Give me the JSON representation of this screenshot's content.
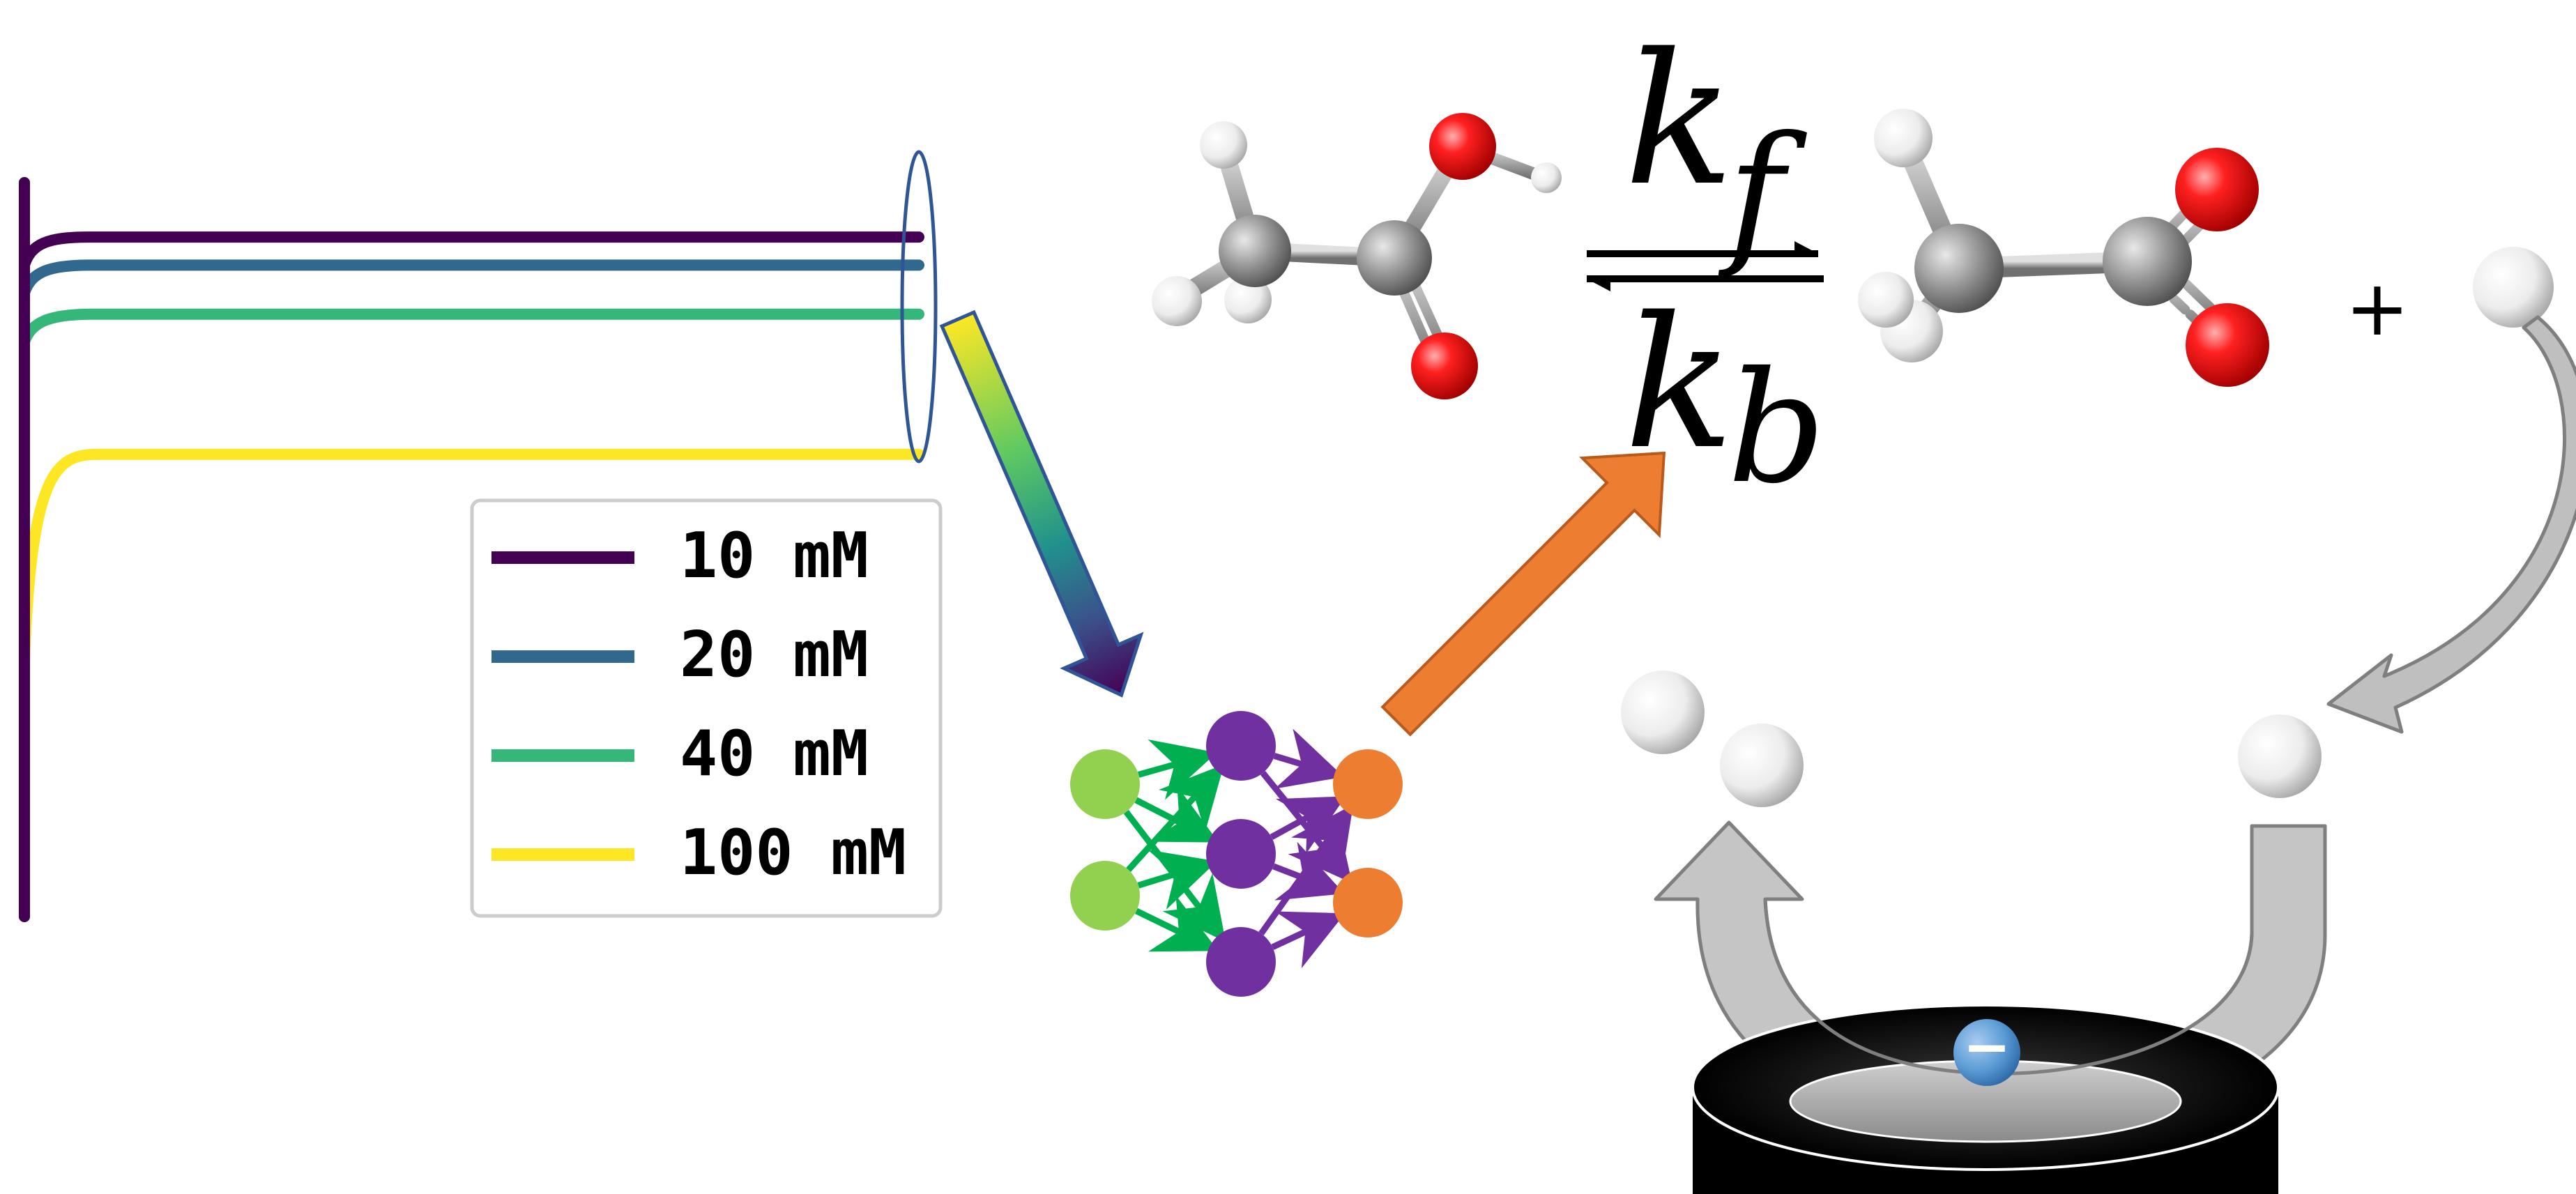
{
  "chart_data": {
    "type": "line",
    "title": "",
    "xlabel": "",
    "ylabel": "",
    "legend": {
      "placement": "bottom-right",
      "frame": true
    },
    "grid": false,
    "series": [
      {
        "name": "10 mM",
        "color": "#440154",
        "shape": "steep drop then flat plateau",
        "plateau_level": 0.97
      },
      {
        "name": "20 mM",
        "color": "#31688e",
        "shape": "steep drop then flat plateau",
        "plateau_level": 0.93
      },
      {
        "name": "40 mM",
        "color": "#35b779",
        "shape": "steep drop then flat plateau",
        "plateau_level": 0.86
      },
      {
        "name": "100 mM",
        "color": "#fde725",
        "shape": "steep drop then flat plateau",
        "plateau_level": 0.66
      }
    ]
  },
  "equation": {
    "forward_rate": {
      "symbol": "k",
      "subscript": "f"
    },
    "backward_rate": {
      "symbol": "k",
      "subscript": "b"
    },
    "plus_sign": "+"
  },
  "molecules": {
    "reactant": "acetic-acid",
    "product_1": "acetate",
    "product_2": "hydrogen-atom",
    "adsorbed_pair": "hydrogen-molecule",
    "single_atom": "hydrogen-atom"
  },
  "electron_symbol": "−",
  "neural_network": {
    "input_nodes": 2,
    "hidden_nodes": 3,
    "output_nodes": 2,
    "colors": {
      "input": "#92d050",
      "hidden": "#7030a0",
      "output": "#ed7d31",
      "input_edges": "#00b050",
      "hidden_edges": "#7030a0"
    }
  },
  "colors": {
    "arrow_orange": "#ed7d31",
    "arrow_gray": "#bfbfbf",
    "oxygen": "#ee1111",
    "carbon": "#909090",
    "hydrogen": "#f0f0f0",
    "electron": "#5b9bd5",
    "electrode": "#000000"
  }
}
